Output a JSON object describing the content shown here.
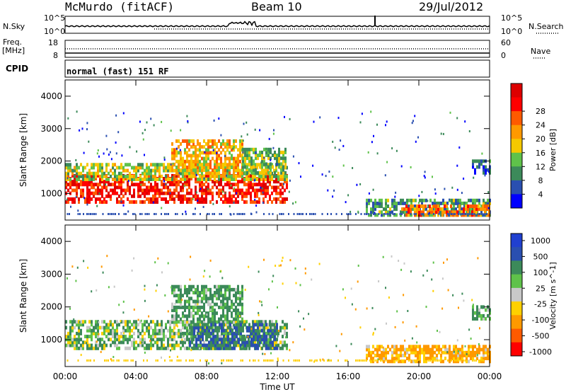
{
  "header": {
    "station": "McMurdo (fitACF)",
    "beam": "Beam 10",
    "date": "29/Jul/2012"
  },
  "top_panels": {
    "nsky_label": "N.Sky",
    "nsky_ticks": [
      "10^5",
      "10^0"
    ],
    "nsearch_label": "N.Search",
    "nsearch_ticks": [
      "10^5",
      "10^0"
    ],
    "freq_label": "Freq.",
    "freq_unit": "[MHz]",
    "freq_ticks": [
      "18",
      "8"
    ],
    "nave_label": "Nave",
    "nave_ticks": [
      "60",
      "0"
    ],
    "cpid_label": "CPID",
    "cpid_text": "normal (fast) 151 RF"
  },
  "colors": {
    "power_scale": [
      "#0000ff",
      "#2a4fb0",
      "#3c8a5a",
      "#5fc24a",
      "#f5c800",
      "#ff9900",
      "#ff5a00",
      "#ff0000",
      "#dd0000"
    ],
    "velocity_scale": [
      "#2040d0",
      "#2a4fb0",
      "#3c8a5a",
      "#5fc24a",
      "#c8c8c8",
      "#ffd000",
      "#ff9900",
      "#ff5a00",
      "#ff0000"
    ]
  },
  "chart_data": [
    {
      "type": "heatmap",
      "title": "",
      "xlabel": "Time UT",
      "ylabel": "Slant Range [km]",
      "xticks": [
        "00:00",
        "04:00",
        "08:00",
        "12:00",
        "16:00",
        "20:00",
        "00:00"
      ],
      "yticks": [
        "1000",
        "2000",
        "3000",
        "4000"
      ],
      "ylim": [
        180,
        4500
      ],
      "xlim_hours": [
        0,
        24
      ],
      "colorbar": {
        "label": "Power [dB]",
        "ticks": [
          "4",
          "8",
          "12",
          "16",
          "20",
          "24",
          "28"
        ],
        "range": [
          0,
          32
        ]
      },
      "regions": [
        {
          "t": [
            0,
            12.5
          ],
          "r": [
            700,
            1600
          ],
          "value": 27
        },
        {
          "t": [
            0,
            12.5
          ],
          "r": [
            1400,
            1900
          ],
          "value": 14
        },
        {
          "t": [
            6,
            10
          ],
          "r": [
            1500,
            2600
          ],
          "value": 18
        },
        {
          "t": [
            10,
            12.5
          ],
          "r": [
            1600,
            2400
          ],
          "value": 12
        },
        {
          "t": [
            17,
            24
          ],
          "r": [
            300,
            800
          ],
          "value": 10
        },
        {
          "t": [
            19,
            24
          ],
          "r": [
            300,
            600
          ],
          "value": 22
        },
        {
          "t": [
            23,
            24
          ],
          "r": [
            1600,
            2000
          ],
          "value": 6
        }
      ]
    },
    {
      "type": "heatmap",
      "title": "",
      "xlabel": "Time UT",
      "ylabel": "Slant Range [km]",
      "xticks": [
        "00:00",
        "04:00",
        "08:00",
        "12:00",
        "16:00",
        "20:00",
        "00:00"
      ],
      "yticks": [
        "1000",
        "2000",
        "3000",
        "4000"
      ],
      "ylim": [
        180,
        4500
      ],
      "xlim_hours": [
        0,
        24
      ],
      "colorbar": {
        "label": "Velocity [m s^-1]",
        "ticks": [
          "1000",
          "500",
          "100",
          "25",
          "-25",
          "-100",
          "-500",
          "-1000"
        ],
        "range": [
          -1000,
          1000
        ]
      },
      "regions": [
        {
          "t": [
            0,
            12.5
          ],
          "r": [
            700,
            1600
          ],
          "value": 80
        },
        {
          "t": [
            6,
            10
          ],
          "r": [
            1500,
            2600
          ],
          "value": 150
        },
        {
          "t": [
            7,
            12
          ],
          "r": [
            700,
            1500
          ],
          "value": 500
        },
        {
          "t": [
            17,
            24
          ],
          "r": [
            300,
            800
          ],
          "value": -150
        },
        {
          "t": [
            23,
            24
          ],
          "r": [
            1600,
            2000
          ],
          "value": 100
        }
      ]
    }
  ]
}
